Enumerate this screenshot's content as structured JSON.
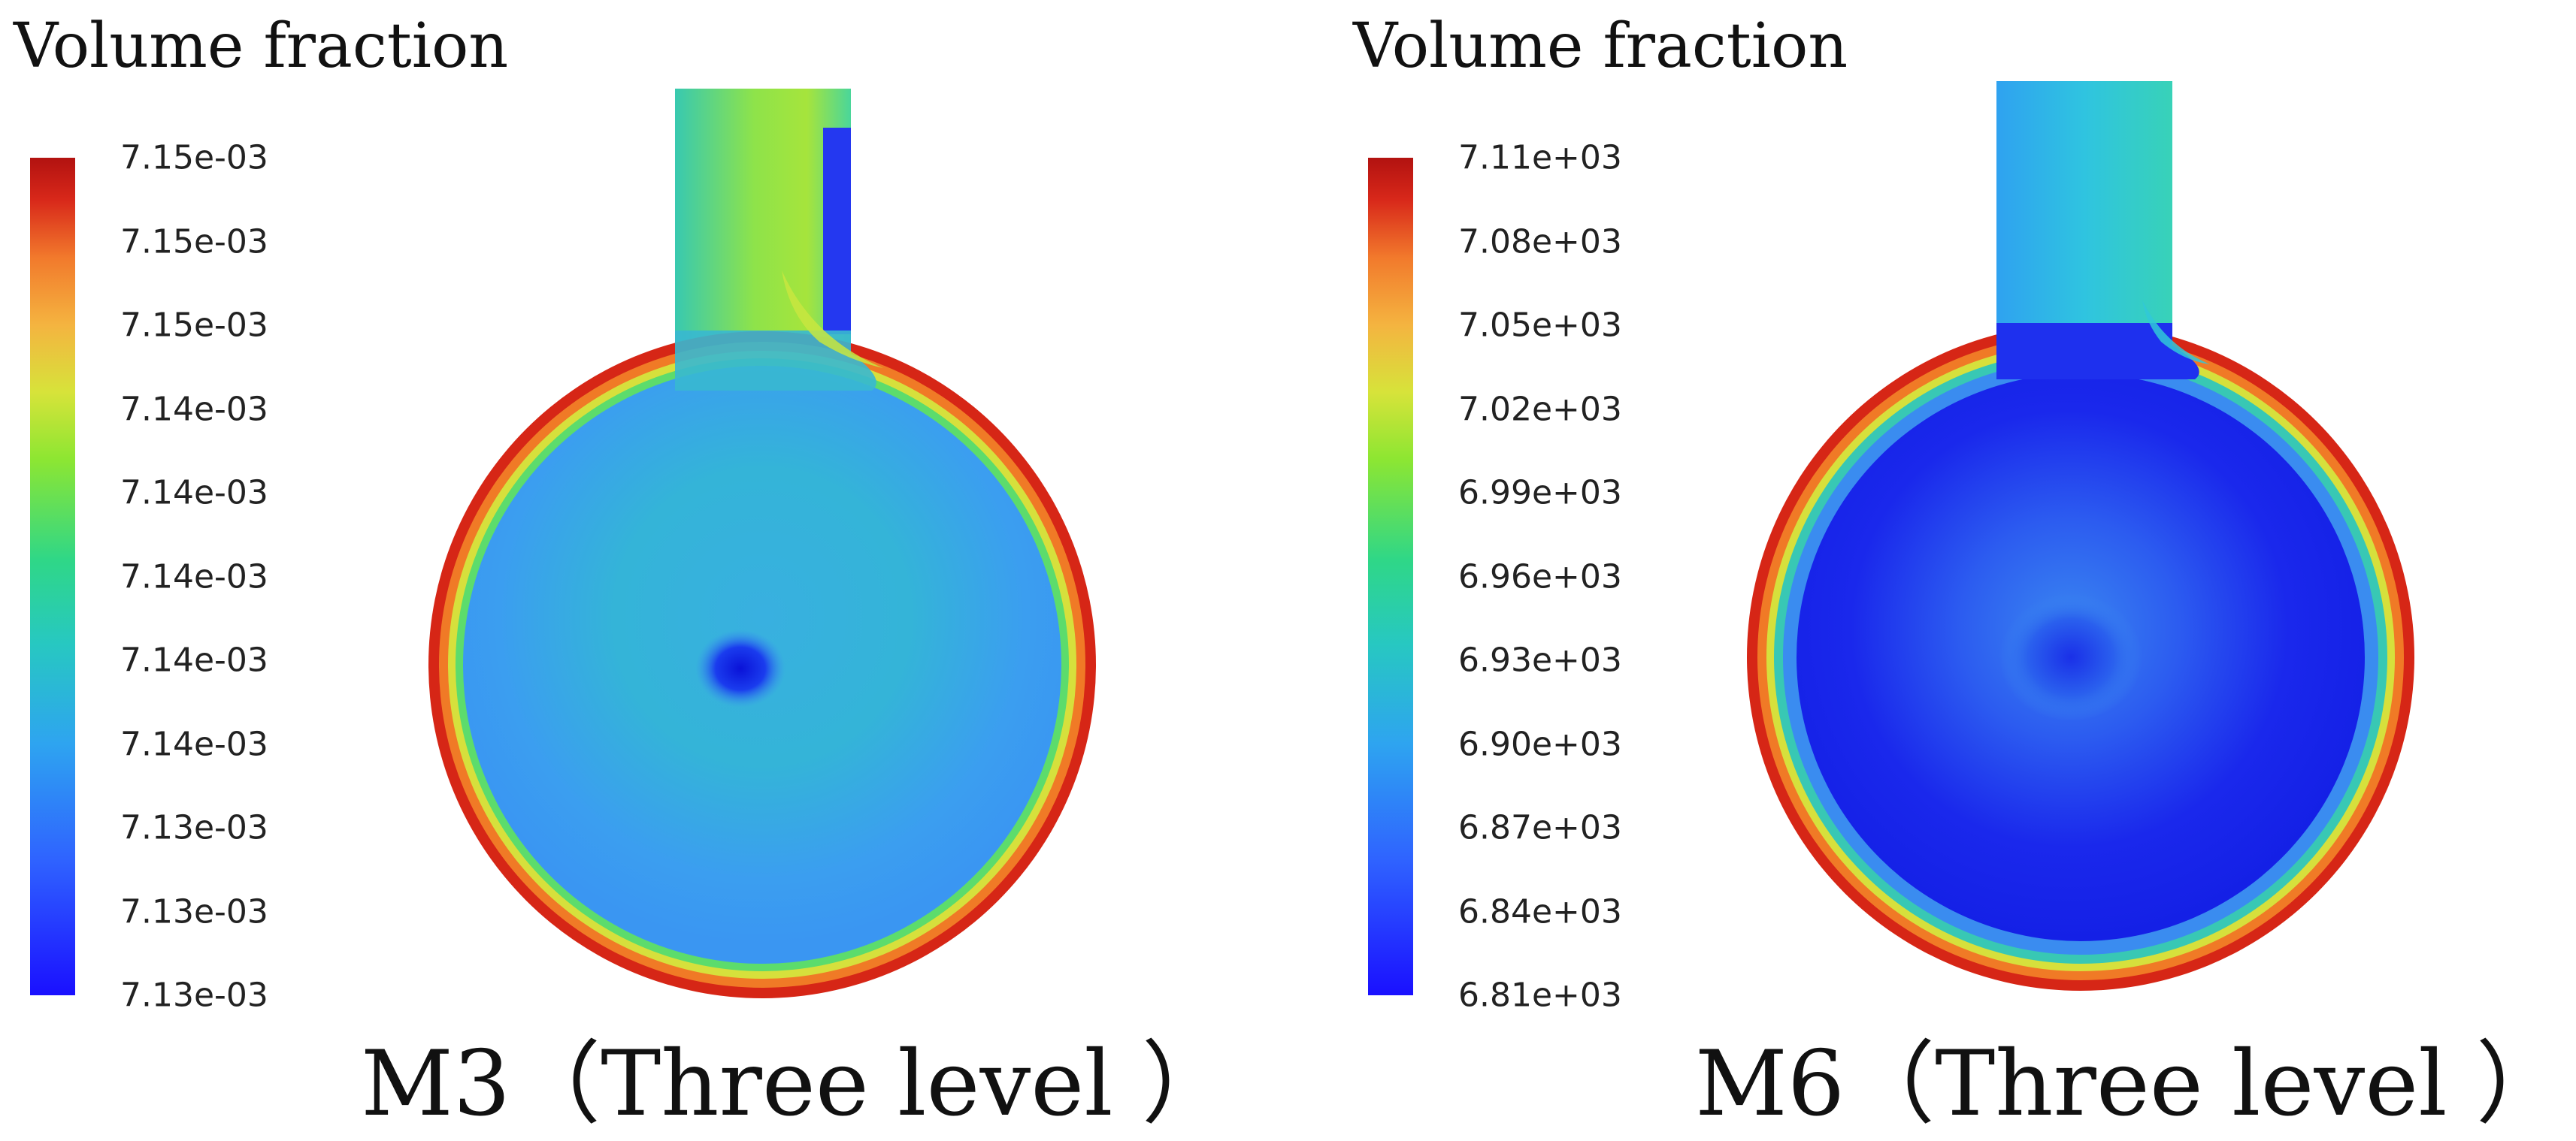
{
  "panels": [
    {
      "legend_title": "Volume fraction",
      "ticks": [
        "7.15e-03",
        "7.15e-03",
        "7.15e-03",
        "7.14e-03",
        "7.14e-03",
        "7.14e-03",
        "7.14e-03",
        "7.14e-03",
        "7.13e-03",
        "7.13e-03",
        "7.13e-03"
      ],
      "caption": "M3（Three level ）",
      "colors": {
        "interior": "#38a4f0",
        "core": "#1020e8",
        "rim": "#d42414",
        "inlet": "#6fdc55"
      }
    },
    {
      "legend_title": "Volume fraction",
      "ticks": [
        "7.11e+03",
        "7.08e+03",
        "7.05e+03",
        "7.02e+03",
        "6.99e+03",
        "6.96e+03",
        "6.93e+03",
        "6.90e+03",
        "6.87e+03",
        "6.84e+03",
        "6.81e+03"
      ],
      "caption": "M6（Three level ）",
      "colors": {
        "interior": "#1f2ff0",
        "core": "#2f7cf0",
        "rim": "#d42414",
        "inlet": "#30b8e8"
      }
    }
  ]
}
